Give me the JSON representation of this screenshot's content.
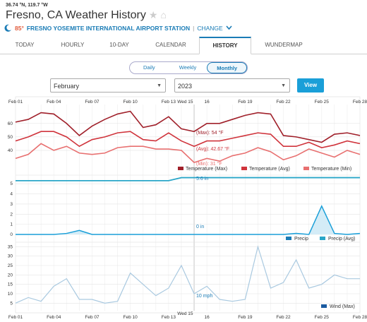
{
  "header": {
    "coords": "36.74 °N, 119.7 °W",
    "title": "Fresno, CA Weather History",
    "current_temp": "85°",
    "station": "FRESNO YOSEMITE INTERNATIONAL AIRPORT STATION",
    "separator": "|",
    "change_label": "CHANGE"
  },
  "tabs": [
    "TODAY",
    "HOURLY",
    "10-DAY",
    "CALENDAR",
    "HISTORY",
    "WUNDERMAP"
  ],
  "active_tab": "HISTORY",
  "view_toggle": {
    "options": [
      "Daily",
      "Weekly",
      "Monthly"
    ],
    "selected": "Monthly"
  },
  "month_select": "February",
  "year_select": "2023",
  "view_button": "View",
  "colors": {
    "accent": "#1a7cb6",
    "temp_max": "#a0202a",
    "temp_avg": "#d0343c",
    "temp_min": "#e87070",
    "precip": "#1a9fd8",
    "wind": "#a9c9e0"
  },
  "chart_data": [
    {
      "type": "line",
      "title": "Temperature",
      "x_ticks": [
        "Feb 01",
        "Feb 04",
        "Feb 07",
        "Feb 10",
        "Feb 13",
        "Feb 16",
        "Feb 19",
        "Feb 22",
        "Feb 25",
        "Feb 28"
      ],
      "x_tick_labels": [
        "Feb 01",
        "Feb 04",
        "Feb 07",
        "Feb 10",
        "Feb 13",
        "16",
        "Feb 19",
        "Feb 22",
        "Feb 25",
        "Feb 28"
      ],
      "hover_label": "Wed 15",
      "y_ticks": [
        40,
        50,
        60
      ],
      "ylim": [
        30,
        73
      ],
      "days": [
        1,
        2,
        3,
        4,
        5,
        6,
        7,
        8,
        9,
        10,
        11,
        12,
        13,
        14,
        15,
        16,
        17,
        18,
        19,
        20,
        21,
        22,
        23,
        24,
        25,
        26,
        27,
        28
      ],
      "series": [
        {
          "name": "Temperature (Max)",
          "values": [
            61,
            63,
            68,
            67,
            60,
            51,
            58,
            63,
            67,
            69,
            57,
            59,
            65,
            56,
            54,
            60,
            60,
            63,
            66,
            68,
            67,
            51,
            50,
            48,
            46,
            52,
            53,
            51
          ]
        },
        {
          "name": "Temperature (Avg)",
          "values": [
            47,
            50,
            54,
            54,
            50,
            43,
            48,
            50,
            53,
            54,
            48,
            47,
            53,
            47,
            43,
            47,
            47,
            49,
            51,
            53,
            52,
            43,
            43,
            46,
            42,
            44,
            47,
            45
          ]
        },
        {
          "name": "Temperature (Min)",
          "values": [
            34,
            37,
            45,
            40,
            43,
            38,
            37,
            38,
            42,
            43,
            43,
            41,
            41,
            40,
            31,
            34,
            32,
            36,
            38,
            42,
            39,
            33,
            36,
            41,
            38,
            35,
            40,
            37
          ]
        }
      ],
      "annotations": [
        "(Max): 54 °F",
        "(Avg): 42.67 °F",
        "(Min): 31 °F"
      ]
    },
    {
      "type": "area",
      "title": "Precip",
      "y_ticks": [
        0,
        1,
        2,
        3,
        4,
        5
      ],
      "ylim": [
        0,
        5.5
      ],
      "days": [
        1,
        2,
        3,
        4,
        5,
        6,
        7,
        8,
        9,
        10,
        11,
        12,
        13,
        14,
        15,
        16,
        17,
        18,
        19,
        20,
        21,
        22,
        23,
        24,
        25,
        26,
        27,
        28
      ],
      "series": [
        {
          "name": "Precip",
          "values": [
            0,
            0,
            0,
            0,
            0.1,
            0.4,
            0,
            0,
            0,
            0,
            0,
            0,
            0,
            0,
            0,
            0,
            0,
            0,
            0,
            0,
            0,
            0,
            0.1,
            0,
            2.8,
            0.1,
            0,
            0.1
          ]
        },
        {
          "name": "Precip (Avg)",
          "values": [
            5.3,
            5.3,
            5.3,
            5.3,
            5.3,
            5.3,
            5.3,
            5.3,
            5.3,
            5.3,
            5.3,
            5.3,
            5.3,
            5.6,
            5.6,
            5.6,
            5.6,
            5.6,
            5.6,
            5.6,
            5.6,
            5.6,
            5.6,
            5.6,
            5.6,
            5.6,
            5.6,
            5.6
          ]
        }
      ],
      "annotations": [
        "5.6 in",
        "0 in"
      ]
    },
    {
      "type": "line",
      "title": "Wind",
      "y_ticks": [
        5,
        10,
        15,
        20,
        25,
        30,
        35
      ],
      "ylim": [
        4,
        37
      ],
      "days": [
        1,
        2,
        3,
        4,
        5,
        6,
        7,
        8,
        9,
        10,
        11,
        12,
        13,
        14,
        15,
        16,
        17,
        18,
        19,
        20,
        21,
        22,
        23,
        24,
        25,
        26,
        27,
        28
      ],
      "series": [
        {
          "name": "Wind (Max)",
          "values": [
            5,
            8,
            6,
            14,
            18,
            7,
            7,
            5,
            6,
            21,
            15,
            9,
            13,
            25,
            10,
            14,
            7,
            6,
            7,
            35,
            13,
            16,
            28,
            13,
            15,
            20,
            18,
            18
          ]
        }
      ],
      "annotations": [
        "10 mph"
      ]
    }
  ]
}
